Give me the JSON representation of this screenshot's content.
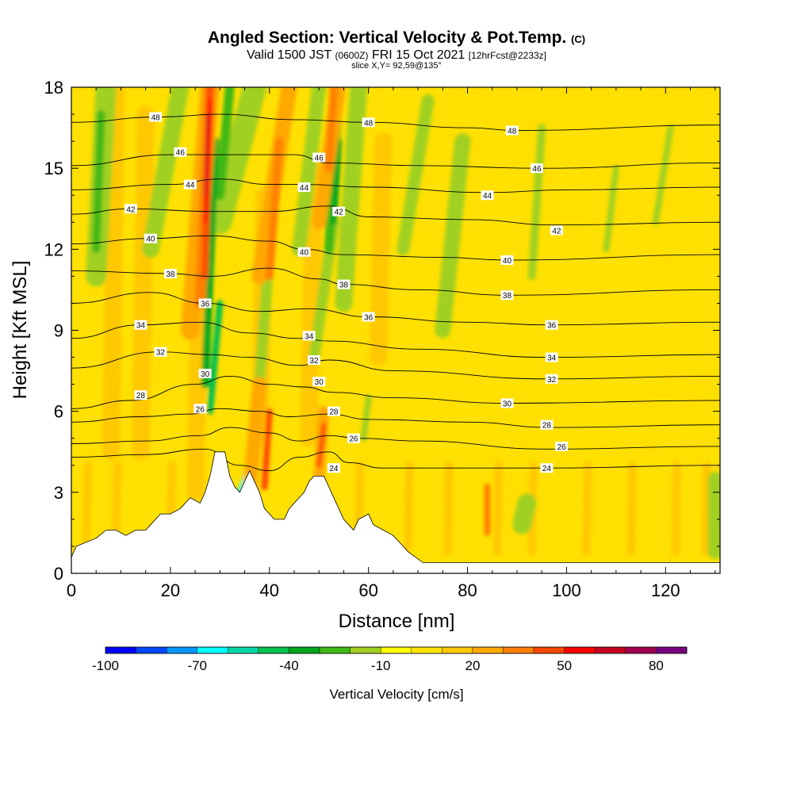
{
  "header": {
    "title": "Angled Section: Vertical Velocity & Pot.Temp.",
    "title_mark": "(C)",
    "valid_prefix": "Valid 1500 JST",
    "valid_utc": "(0600Z)",
    "valid_date": "FRI 15 Oct 2021",
    "forecast": "[12hrFcst@2233z]",
    "slice": "slice X,Y= 92,59@135°"
  },
  "chart_data": {
    "type": "heatmap",
    "xlabel": "Distance [nm]",
    "ylabel": "Height [Kft MSL]",
    "xlim": [
      0,
      131
    ],
    "ylim": [
      0,
      18
    ],
    "x_ticks": [
      "0",
      "20",
      "40",
      "60",
      "80",
      "100",
      "120"
    ],
    "y_ticks": [
      "0",
      "3",
      "6",
      "9",
      "12",
      "15",
      "18"
    ],
    "grid": false,
    "colorbar": {
      "label": "Vertical Velocity [cm/s]",
      "tick_labels": [
        "-100",
        "-70",
        "-40",
        "-10",
        "20",
        "50",
        "80"
      ],
      "levels": [
        -100,
        -90,
        -80,
        -70,
        -60,
        -50,
        -40,
        -30,
        -20,
        -10,
        0,
        10,
        20,
        30,
        40,
        50,
        60,
        70,
        80,
        90
      ],
      "colors": [
        "#0000ff",
        "#0048ff",
        "#0098ff",
        "#00ffff",
        "#00d8a8",
        "#00c050",
        "#00a820",
        "#40b818",
        "#a0d020",
        "#ffff00",
        "#ffe400",
        "#ffc800",
        "#ffa800",
        "#ff8000",
        "#ff4800",
        "#ff0000",
        "#c80020",
        "#a00050",
        "#780080"
      ]
    },
    "terrain_profile_kft": [
      [
        0,
        0.6
      ],
      [
        1,
        1.0
      ],
      [
        5,
        1.3
      ],
      [
        7,
        1.6
      ],
      [
        9,
        1.6
      ],
      [
        11,
        1.4
      ],
      [
        13,
        1.6
      ],
      [
        15,
        1.6
      ],
      [
        16,
        1.8
      ],
      [
        18,
        2.2
      ],
      [
        20,
        2.2
      ],
      [
        22,
        2.4
      ],
      [
        23,
        2.6
      ],
      [
        24,
        2.8
      ],
      [
        26,
        2.6
      ],
      [
        27,
        3.0
      ],
      [
        28,
        3.6
      ],
      [
        29,
        4.5
      ],
      [
        31,
        4.5
      ],
      [
        32,
        3.6
      ],
      [
        33,
        3.2
      ],
      [
        34,
        3.0
      ],
      [
        35,
        3.4
      ],
      [
        36,
        3.8
      ],
      [
        37,
        3.4
      ],
      [
        38,
        3.0
      ],
      [
        39,
        2.4
      ],
      [
        40,
        2.2
      ],
      [
        41,
        2.0
      ],
      [
        43,
        2.0
      ],
      [
        44,
        2.4
      ],
      [
        45,
        2.6
      ],
      [
        46,
        2.8
      ],
      [
        47,
        3.0
      ],
      [
        48,
        3.4
      ],
      [
        49,
        3.6
      ],
      [
        51,
        3.6
      ],
      [
        52,
        3.2
      ],
      [
        53,
        2.8
      ],
      [
        54,
        2.4
      ],
      [
        55,
        2.0
      ],
      [
        56,
        1.8
      ],
      [
        57,
        1.6
      ],
      [
        58,
        2.0
      ],
      [
        60,
        2.2
      ],
      [
        61,
        1.8
      ],
      [
        63,
        1.6
      ],
      [
        65,
        1.4
      ],
      [
        67,
        1.0
      ],
      [
        68,
        0.8
      ],
      [
        71,
        0.4
      ],
      [
        131,
        0.4
      ]
    ],
    "theta_contours": [
      {
        "label": "24",
        "points": [
          [
            0,
            4.3
          ],
          [
            15,
            4.4
          ],
          [
            27,
            4.6
          ],
          [
            34,
            4.0
          ],
          [
            40,
            3.8
          ],
          [
            46,
            4.3
          ],
          [
            52,
            4.5
          ],
          [
            56,
            4.1
          ],
          [
            63,
            3.9
          ],
          [
            75,
            3.9
          ],
          [
            96,
            3.9
          ],
          [
            131,
            4.0
          ]
        ]
      },
      {
        "label": "26",
        "points": [
          [
            0,
            4.8
          ],
          [
            15,
            4.9
          ],
          [
            26,
            5.1
          ],
          [
            32,
            5.4
          ],
          [
            40,
            5.2
          ],
          [
            46,
            4.9
          ],
          [
            52,
            5.1
          ],
          [
            58,
            5.0
          ],
          [
            70,
            4.9
          ],
          [
            96,
            4.6
          ],
          [
            131,
            4.7
          ]
        ]
      },
      {
        "label": "28",
        "points": [
          [
            0,
            5.6
          ],
          [
            14,
            5.8
          ],
          [
            24,
            5.9
          ],
          [
            30,
            6.1
          ],
          [
            38,
            6.0
          ],
          [
            44,
            5.8
          ],
          [
            52,
            5.9
          ],
          [
            60,
            5.7
          ],
          [
            80,
            5.6
          ],
          [
            97,
            5.4
          ],
          [
            131,
            5.5
          ]
        ]
      },
      {
        "label": "30",
        "points": [
          [
            0,
            6.1
          ],
          [
            12,
            6.4
          ],
          [
            25,
            7.0
          ],
          [
            32,
            7.3
          ],
          [
            40,
            7.0
          ],
          [
            47,
            6.9
          ],
          [
            53,
            6.7
          ],
          [
            65,
            6.5
          ],
          [
            88,
            6.3
          ],
          [
            131,
            6.4
          ]
        ]
      },
      {
        "label": "32",
        "points": [
          [
            0,
            7.6
          ],
          [
            18,
            8.2
          ],
          [
            28,
            8.1
          ],
          [
            36,
            8.0
          ],
          [
            46,
            7.7
          ],
          [
            52,
            7.9
          ],
          [
            65,
            7.5
          ],
          [
            96,
            7.2
          ],
          [
            131,
            7.3
          ]
        ]
      },
      {
        "label": "34",
        "points": [
          [
            0,
            8.7
          ],
          [
            14,
            9.2
          ],
          [
            26,
            9.3
          ],
          [
            36,
            8.9
          ],
          [
            46,
            8.7
          ],
          [
            52,
            8.6
          ],
          [
            70,
            8.3
          ],
          [
            96,
            8.0
          ],
          [
            131,
            8.1
          ]
        ]
      },
      {
        "label": "36",
        "points": [
          [
            0,
            10.0
          ],
          [
            16,
            10.4
          ],
          [
            27,
            10.0
          ],
          [
            38,
            9.7
          ],
          [
            48,
            9.8
          ],
          [
            60,
            9.5
          ],
          [
            80,
            9.3
          ],
          [
            96,
            9.2
          ],
          [
            131,
            9.3
          ]
        ]
      },
      {
        "label": "38",
        "points": [
          [
            0,
            11.2
          ],
          [
            20,
            11.1
          ],
          [
            28,
            11.0
          ],
          [
            40,
            11.3
          ],
          [
            50,
            10.9
          ],
          [
            55,
            10.7
          ],
          [
            70,
            10.5
          ],
          [
            88,
            10.3
          ],
          [
            131,
            10.5
          ]
        ]
      },
      {
        "label": "40",
        "points": [
          [
            0,
            12.2
          ],
          [
            16,
            12.4
          ],
          [
            28,
            12.5
          ],
          [
            40,
            12.3
          ],
          [
            47,
            12.0
          ],
          [
            55,
            11.8
          ],
          [
            75,
            11.7
          ],
          [
            88,
            11.6
          ],
          [
            131,
            11.8
          ]
        ]
      },
      {
        "label": "42",
        "points": [
          [
            0,
            13.3
          ],
          [
            12,
            13.5
          ],
          [
            28,
            13.4
          ],
          [
            40,
            13.4
          ],
          [
            52,
            13.6
          ],
          [
            60,
            13.2
          ],
          [
            80,
            13.1
          ],
          [
            98,
            12.9
          ],
          [
            131,
            13.0
          ]
        ]
      },
      {
        "label": "44",
        "points": [
          [
            0,
            14.2
          ],
          [
            20,
            14.4
          ],
          [
            30,
            14.6
          ],
          [
            40,
            14.4
          ],
          [
            47,
            14.4
          ],
          [
            60,
            14.3
          ],
          [
            84,
            14.1
          ],
          [
            100,
            14.2
          ],
          [
            131,
            14.3
          ]
        ]
      },
      {
        "label": "46",
        "points": [
          [
            0,
            15.1
          ],
          [
            20,
            15.5
          ],
          [
            33,
            15.5
          ],
          [
            45,
            15.5
          ],
          [
            52,
            15.2
          ],
          [
            70,
            15.1
          ],
          [
            95,
            15.0
          ],
          [
            131,
            15.2
          ]
        ]
      },
      {
        "label": "48",
        "points": [
          [
            0,
            16.7
          ],
          [
            18,
            16.9
          ],
          [
            30,
            17.0
          ],
          [
            45,
            16.8
          ],
          [
            60,
            16.7
          ],
          [
            80,
            16.5
          ],
          [
            90,
            16.4
          ],
          [
            131,
            16.6
          ]
        ]
      }
    ],
    "contour_labels": [
      {
        "text": "48",
        "at": [
          17,
          16.9
        ]
      },
      {
        "text": "48",
        "at": [
          60,
          16.7
        ]
      },
      {
        "text": "48",
        "at": [
          89,
          16.4
        ]
      },
      {
        "text": "46",
        "at": [
          22,
          15.6
        ]
      },
      {
        "text": "46",
        "at": [
          50,
          15.4
        ]
      },
      {
        "text": "46",
        "at": [
          94,
          15.0
        ]
      },
      {
        "text": "44",
        "at": [
          24,
          14.4
        ]
      },
      {
        "text": "44",
        "at": [
          47,
          14.3
        ]
      },
      {
        "text": "44",
        "at": [
          84,
          14.0
        ]
      },
      {
        "text": "42",
        "at": [
          12,
          13.5
        ]
      },
      {
        "text": "42",
        "at": [
          54,
          13.4
        ]
      },
      {
        "text": "42",
        "at": [
          98,
          12.7
        ]
      },
      {
        "text": "40",
        "at": [
          16,
          12.4
        ]
      },
      {
        "text": "40",
        "at": [
          47,
          11.9
        ]
      },
      {
        "text": "40",
        "at": [
          88,
          11.6
        ]
      },
      {
        "text": "38",
        "at": [
          20,
          11.1
        ]
      },
      {
        "text": "38",
        "at": [
          55,
          10.7
        ]
      },
      {
        "text": "38",
        "at": [
          88,
          10.3
        ]
      },
      {
        "text": "36",
        "at": [
          27,
          10.0
        ]
      },
      {
        "text": "36",
        "at": [
          60,
          9.5
        ]
      },
      {
        "text": "36",
        "at": [
          97,
          9.2
        ]
      },
      {
        "text": "34",
        "at": [
          14,
          9.2
        ]
      },
      {
        "text": "34",
        "at": [
          48,
          8.8
        ]
      },
      {
        "text": "34",
        "at": [
          97,
          8.0
        ]
      },
      {
        "text": "32",
        "at": [
          18,
          8.2
        ]
      },
      {
        "text": "32",
        "at": [
          49,
          7.9
        ]
      },
      {
        "text": "32",
        "at": [
          97,
          7.2
        ]
      },
      {
        "text": "30",
        "at": [
          27,
          7.4
        ]
      },
      {
        "text": "30",
        "at": [
          50,
          7.1
        ]
      },
      {
        "text": "30",
        "at": [
          88,
          6.3
        ]
      },
      {
        "text": "28",
        "at": [
          14,
          6.6
        ]
      },
      {
        "text": "28",
        "at": [
          53,
          6.0
        ]
      },
      {
        "text": "28",
        "at": [
          96,
          5.5
        ]
      },
      {
        "text": "26",
        "at": [
          26,
          6.1
        ]
      },
      {
        "text": "26",
        "at": [
          57,
          5.0
        ]
      },
      {
        "text": "26",
        "at": [
          99,
          4.7
        ]
      },
      {
        "text": "24",
        "at": [
          53,
          3.9
        ]
      },
      {
        "text": "24",
        "at": [
          96,
          3.9
        ]
      }
    ]
  }
}
